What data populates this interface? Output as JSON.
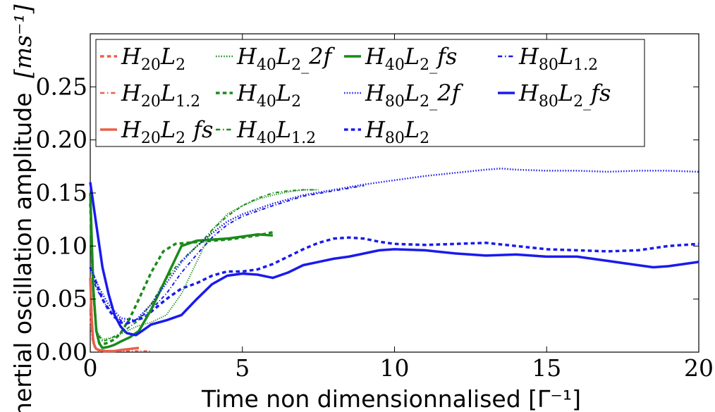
{
  "chart_data": {
    "type": "line",
    "xlabel": "Time non dimensionnalised [Γ⁻¹]",
    "ylabel": "Inertial oscillation amplitude",
    "ylabel_unit": "[ms⁻¹]",
    "xlim": [
      0,
      20
    ],
    "ylim": [
      0,
      0.3
    ],
    "xticks": [
      "0",
      "5",
      "10",
      "15",
      "20"
    ],
    "yticks": [
      "0.00",
      "0.05",
      "0.10",
      "0.15",
      "0.20",
      "0.25"
    ],
    "legend": {
      "placement": "top-left",
      "columns": 4
    },
    "grid": false,
    "series": [
      {
        "name": "H₂₀L₂",
        "color": "#e8604c",
        "style": "dashed",
        "width": 3,
        "x": [
          0,
          0.05,
          0.1,
          0.15,
          0.2,
          0.3,
          0.4,
          0.6
        ],
        "y": [
          0.04,
          0.025,
          0.012,
          0.006,
          0.003,
          0.001,
          0.0005,
          0.0003
        ]
      },
      {
        "name": "H₄₀L₂",
        "color": "#1a8a1a",
        "style": "dashed",
        "width": 3.5,
        "x": [
          0,
          0.1,
          0.2,
          0.3,
          0.5,
          0.8,
          1.0,
          1.3,
          1.6,
          2.0,
          2.4,
          2.8,
          3.2,
          3.6,
          4.0,
          4.5,
          5.0,
          5.5,
          6.0
        ],
        "y": [
          0.14,
          0.06,
          0.02,
          0.008,
          0.008,
          0.012,
          0.018,
          0.032,
          0.05,
          0.075,
          0.095,
          0.102,
          0.103,
          0.104,
          0.105,
          0.106,
          0.108,
          0.11,
          0.113
        ]
      },
      {
        "name": "H₈₀L₂",
        "color": "#1a1aee",
        "style": "dashed",
        "width": 3.5,
        "x": [
          0,
          0.2,
          0.4,
          0.6,
          0.8,
          1.0,
          1.2,
          1.5,
          1.8,
          2.0,
          2.5,
          3.0,
          3.5,
          4.0,
          4.5,
          5.0,
          5.5,
          6.0,
          6.5,
          7.0,
          7.5,
          8.0,
          8.5,
          9.0,
          9.5,
          10.0,
          11.0,
          12.0,
          13.0,
          14.0,
          15.0,
          16.0,
          17.0,
          18.0,
          19.0,
          20.0
        ],
        "y": [
          0.08,
          0.065,
          0.05,
          0.04,
          0.033,
          0.028,
          0.027,
          0.03,
          0.033,
          0.038,
          0.05,
          0.06,
          0.065,
          0.072,
          0.076,
          0.076,
          0.078,
          0.083,
          0.09,
          0.097,
          0.103,
          0.107,
          0.108,
          0.107,
          0.104,
          0.102,
          0.101,
          0.102,
          0.103,
          0.1,
          0.097,
          0.096,
          0.095,
          0.096,
          0.1,
          0.102
        ]
      },
      {
        "name": "H₂₀L₁.₂",
        "color": "#e8604c",
        "style": "dashdot",
        "width": 2,
        "x": [
          0,
          0.05,
          0.1,
          0.2,
          0.4,
          0.8,
          1.2,
          1.6,
          2.0
        ],
        "y": [
          0.03,
          0.015,
          0.007,
          0.003,
          0.001,
          0.0008,
          0.001,
          0.0012,
          0.001
        ]
      },
      {
        "name": "H₄₀L₁.₂",
        "color": "#1a8a1a",
        "style": "dashdot",
        "width": 2,
        "x": [
          0,
          0.1,
          0.2,
          0.4,
          0.6,
          1.0,
          1.5,
          2.0,
          2.4,
          2.8,
          3.2,
          3.6,
          4.0,
          4.5,
          5.0,
          5.5,
          6.0,
          6.5,
          7.0,
          7.5
        ],
        "y": [
          0.12,
          0.05,
          0.02,
          0.01,
          0.012,
          0.018,
          0.028,
          0.045,
          0.065,
          0.08,
          0.092,
          0.102,
          0.115,
          0.128,
          0.138,
          0.145,
          0.15,
          0.152,
          0.153,
          0.153
        ]
      },
      {
        "name": "H₈₀L₁.₂",
        "color": "#1a1aee",
        "style": "dashdot",
        "width": 2,
        "x": [
          0,
          0.2,
          0.5,
          0.8,
          1.0,
          1.3,
          1.6,
          2.0,
          2.5,
          3.0,
          3.5,
          4.0,
          4.5,
          5.0,
          6.0,
          7.0,
          8.0,
          9.0
        ],
        "y": [
          0.08,
          0.06,
          0.045,
          0.035,
          0.03,
          0.028,
          0.032,
          0.04,
          0.055,
          0.075,
          0.092,
          0.108,
          0.12,
          0.128,
          0.138,
          0.147,
          0.152,
          0.157
        ]
      },
      {
        "name": "H₂₀L₂_fs",
        "color": "#e8604c",
        "style": "solid",
        "width": 3.5,
        "x": [
          0,
          0.05,
          0.1,
          0.15,
          0.2,
          0.3,
          0.5,
          0.8,
          1.0,
          1.3,
          1.6
        ],
        "y": [
          0.07,
          0.03,
          0.01,
          0.005,
          0.003,
          0.002,
          0.001,
          0.001,
          0.002,
          0.003,
          0.004
        ]
      },
      {
        "name": "H₄₀L₂_fs",
        "color": "#1a8a1a",
        "style": "solid",
        "width": 3.5,
        "x": [
          0,
          0.1,
          0.2,
          0.3,
          0.4,
          0.6,
          0.8,
          1.0,
          1.3,
          1.6,
          2.0,
          2.5,
          3.0,
          3.5,
          4.0,
          4.5,
          5.0,
          5.5,
          6.0
        ],
        "y": [
          0.15,
          0.06,
          0.02,
          0.008,
          0.004,
          0.005,
          0.007,
          0.01,
          0.014,
          0.02,
          0.04,
          0.07,
          0.1,
          0.105,
          0.106,
          0.107,
          0.109,
          0.111,
          0.11
        ]
      },
      {
        "name": "H₈₀L₂_fs",
        "color": "#1a1aee",
        "style": "solid",
        "width": 3.5,
        "x": [
          0,
          0.2,
          0.4,
          0.6,
          0.8,
          1.0,
          1.2,
          1.5,
          1.8,
          2.0,
          2.5,
          3.0,
          3.5,
          4.0,
          4.5,
          5.0,
          5.5,
          6.0,
          6.5,
          7.0,
          7.5,
          8.0,
          8.5,
          9.0,
          9.5,
          10.0,
          11.0,
          12.0,
          13.0,
          14.0,
          15.0,
          16.0,
          17.0,
          18.0,
          18.5,
          19.0,
          20.0
        ],
        "y": [
          0.16,
          0.12,
          0.08,
          0.055,
          0.035,
          0.024,
          0.018,
          0.016,
          0.022,
          0.026,
          0.03,
          0.035,
          0.05,
          0.064,
          0.072,
          0.074,
          0.073,
          0.07,
          0.075,
          0.082,
          0.085,
          0.088,
          0.09,
          0.093,
          0.096,
          0.097,
          0.096,
          0.093,
          0.091,
          0.092,
          0.09,
          0.09,
          0.086,
          0.082,
          0.08,
          0.081,
          0.085
        ]
      },
      {
        "name": "H₄₀L₂_2f",
        "color": "#1a8a1a",
        "style": "dotted",
        "width": 2,
        "x": [
          0,
          0.1,
          0.2,
          0.4,
          0.8,
          1.2,
          1.6,
          2.0,
          2.5,
          3.0,
          3.5,
          4.0,
          4.5,
          5.0,
          5.5,
          6.0,
          6.5,
          7.0,
          7.5
        ],
        "y": [
          0.11,
          0.05,
          0.02,
          0.012,
          0.014,
          0.02,
          0.025,
          0.028,
          0.035,
          0.055,
          0.085,
          0.115,
          0.13,
          0.138,
          0.144,
          0.148,
          0.151,
          0.153,
          0.153
        ]
      },
      {
        "name": "H₈₀L₂_2f",
        "color": "#1a1aee",
        "style": "dotted",
        "width": 2.5,
        "x": [
          0,
          0.3,
          0.6,
          1.0,
          1.5,
          2.0,
          2.5,
          3.0,
          3.5,
          4.0,
          4.5,
          5.0,
          6.0,
          7.0,
          8.0,
          9.0,
          10.0,
          11.0,
          12.0,
          13.0,
          13.5,
          14.0,
          15.0,
          16.0,
          17.0,
          18.0,
          19.0,
          20.0
        ],
        "y": [
          0.08,
          0.06,
          0.045,
          0.032,
          0.03,
          0.045,
          0.065,
          0.085,
          0.1,
          0.112,
          0.123,
          0.13,
          0.14,
          0.148,
          0.153,
          0.158,
          0.162,
          0.166,
          0.169,
          0.172,
          0.173,
          0.172,
          0.171,
          0.171,
          0.17,
          0.171,
          0.171,
          0.17
        ]
      }
    ]
  },
  "legend_entries": [
    {
      "main": "H",
      "sub": "20",
      "main2": "L",
      "sub2": "2",
      "suffix": "",
      "color": "#e8604c",
      "style": "dashed"
    },
    {
      "main": "H",
      "sub": "20",
      "main2": "L",
      "sub2": "1.2",
      "suffix": "",
      "color": "#e8604c",
      "style": "dashdot"
    },
    {
      "main": "H",
      "sub": "20",
      "main2": "L",
      "sub2": "2",
      "suffix": "fs",
      "color": "#e8604c",
      "style": "solid"
    },
    {
      "main": "H",
      "sub": "40",
      "main2": "L",
      "sub2": "2",
      "suffix": "2f",
      "color": "#1a8a1a",
      "style": "dotted"
    },
    {
      "main": "H",
      "sub": "40",
      "main2": "L",
      "sub2": "2",
      "suffix": "",
      "color": "#1a8a1a",
      "style": "dashed"
    },
    {
      "main": "H",
      "sub": "40",
      "main2": "L",
      "sub2": "1.2",
      "suffix": "",
      "color": "#1a8a1a",
      "style": "dashdot"
    },
    {
      "main": "H",
      "sub": "40",
      "main2": "L",
      "sub2": "2",
      "suffix": "fs",
      "color": "#1a8a1a",
      "style": "solid"
    },
    {
      "main": "H",
      "sub": "80",
      "main2": "L",
      "sub2": "2",
      "suffix": "2f",
      "color": "#1a1aee",
      "style": "dotted"
    },
    {
      "main": "H",
      "sub": "80",
      "main2": "L",
      "sub2": "2",
      "suffix": "",
      "color": "#1a1aee",
      "style": "dashed"
    },
    {
      "main": "H",
      "sub": "80",
      "main2": "L",
      "sub2": "1.2",
      "suffix": "",
      "color": "#1a1aee",
      "style": "dashdot"
    },
    {
      "main": "H",
      "sub": "80",
      "main2": "L",
      "sub2": "2",
      "suffix": "fs",
      "color": "#1a1aee",
      "style": "solid"
    }
  ]
}
